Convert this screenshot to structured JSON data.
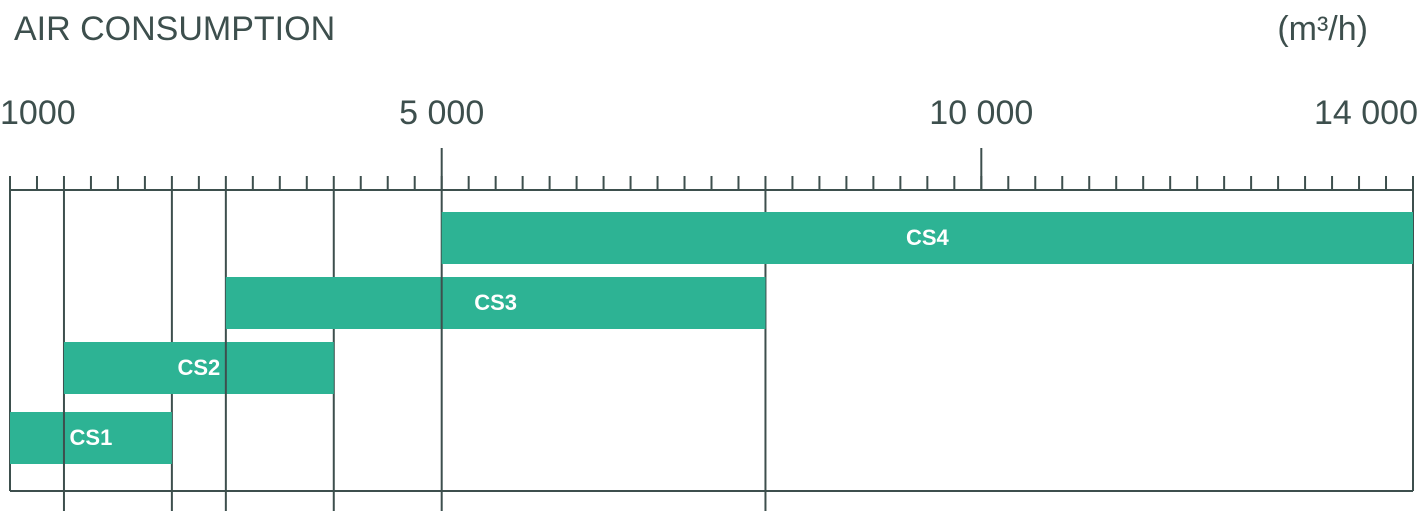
{
  "chart_data": {
    "type": "range-bar",
    "title": "AIR CONSUMPTION",
    "unit": "(m³/h)",
    "categories": [
      "CS1",
      "CS2",
      "CS3",
      "CS4"
    ],
    "low": [
      1000,
      1500,
      3000,
      5000
    ],
    "high": [
      2500,
      4000,
      8000,
      14000
    ],
    "color": "#2db394",
    "xlim": [
      1000,
      14000
    ],
    "xticks": [
      {
        "value": 1000,
        "label": "1000"
      },
      {
        "value": 5000,
        "label": "5 000"
      },
      {
        "value": 10000,
        "label": "10 000"
      },
      {
        "value": 14000,
        "label": "14 000"
      }
    ],
    "minor_tick_interval": 250
  }
}
